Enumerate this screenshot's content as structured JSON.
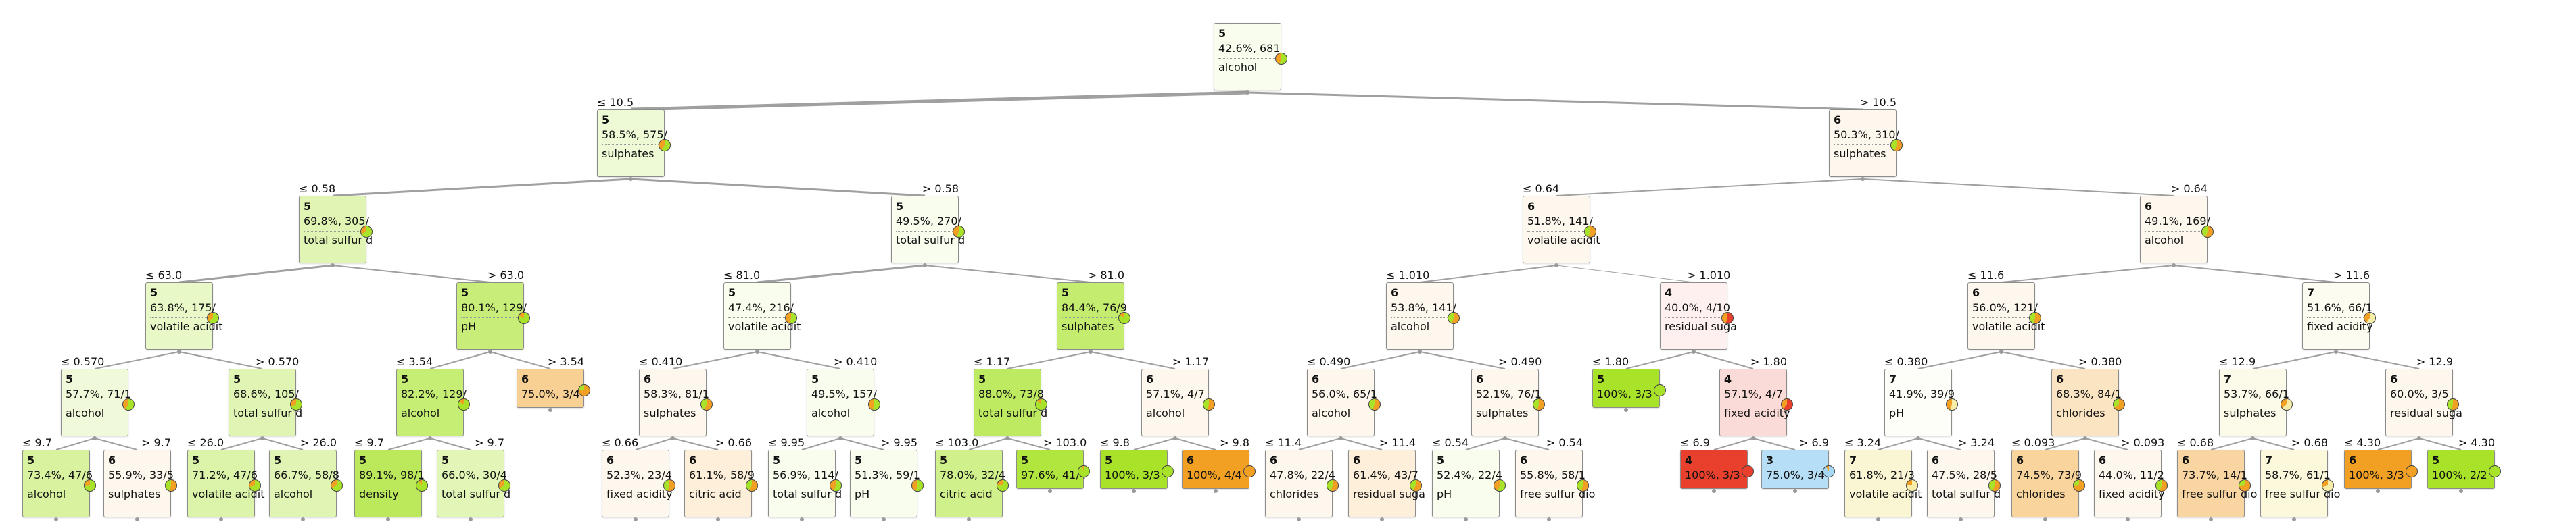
{
  "colors": {
    "class_3": "#a6d8f5",
    "class_4": "#e8402c",
    "class_5": "#a8e32a",
    "class_6": "#f2a024",
    "class_7": "#f5eda8",
    "edge": "#a0a0a0"
  },
  "nodes": [
    {
      "id": "n0",
      "cls": "5",
      "pct": "42.6%, 681",
      "split": "alcohol",
      "tint": "class_5",
      "strength": 0
    },
    {
      "id": "n1",
      "cls": "5",
      "pct": "58.5%, 575/",
      "split": "sulphates",
      "tint": "class_5",
      "strength": 0.12,
      "edge": "≤ 10.5"
    },
    {
      "id": "n2",
      "cls": "6",
      "pct": "50.3%, 310/",
      "split": "sulphates",
      "tint": "class_6",
      "strength": 0,
      "edge": "> 10.5"
    },
    {
      "id": "n3",
      "cls": "5",
      "pct": "69.8%, 305/",
      "split": "total sulfur d",
      "tint": "class_5",
      "strength": 0.3,
      "edge": "≤ 0.58"
    },
    {
      "id": "n4",
      "cls": "5",
      "pct": "49.5%, 270/",
      "split": "total sulfur d",
      "tint": "class_5",
      "strength": 0,
      "edge": "> 0.58"
    },
    {
      "id": "n5",
      "cls": "6",
      "pct": "51.8%, 141/",
      "split": "volatile acidit",
      "tint": "class_6",
      "strength": 0,
      "edge": "≤ 0.64"
    },
    {
      "id": "n6",
      "cls": "6",
      "pct": "49.1%, 169/",
      "split": "alcohol",
      "tint": "class_6",
      "strength": 0,
      "edge": "> 0.64"
    },
    {
      "id": "n7",
      "cls": "5",
      "pct": "63.8%, 175/",
      "split": "volatile acidit",
      "tint": "class_5",
      "strength": 0.2,
      "edge": "≤ 63.0"
    },
    {
      "id": "n8",
      "cls": "5",
      "pct": "80.1%, 129/",
      "split": "pH",
      "tint": "class_5",
      "strength": 0.6,
      "edge": "> 63.0"
    },
    {
      "id": "n9",
      "cls": "5",
      "pct": "47.4%, 216/",
      "split": "volatile acidit",
      "tint": "class_5",
      "strength": 0,
      "edge": "≤ 81.0"
    },
    {
      "id": "n10",
      "cls": "5",
      "pct": "84.4%, 76/9",
      "split": "sulphates",
      "tint": "class_5",
      "strength": 0.65,
      "edge": "> 81.0"
    },
    {
      "id": "n11",
      "cls": "6",
      "pct": "53.8%, 141/",
      "split": "alcohol",
      "tint": "class_6",
      "strength": 0,
      "edge": "≤ 1.010"
    },
    {
      "id": "n12",
      "cls": "4",
      "pct": "40.0%, 4/10",
      "split": "residual suga",
      "tint": "class_4",
      "strength": 0,
      "edge": "> 1.010"
    },
    {
      "id": "n13",
      "cls": "6",
      "pct": "56.0%, 121/",
      "split": "volatile acidit",
      "tint": "class_6",
      "strength": 0,
      "edge": "≤ 11.6"
    },
    {
      "id": "n14",
      "cls": "7",
      "pct": "51.6%, 66/1",
      "split": "fixed acidity",
      "tint": "class_7",
      "strength": 0.1,
      "edge": "> 11.6"
    },
    {
      "id": "n15",
      "cls": "5",
      "pct": "57.7%, 71/1",
      "split": "alcohol",
      "tint": "class_5",
      "strength": 0.1,
      "edge": "≤ 0.570"
    },
    {
      "id": "n16",
      "cls": "5",
      "pct": "68.6%, 105/",
      "split": "total sulfur d",
      "tint": "class_5",
      "strength": 0.3,
      "edge": "> 0.570"
    },
    {
      "id": "n17",
      "cls": "5",
      "pct": "82.2%, 129/",
      "split": "alcohol",
      "tint": "class_5",
      "strength": 0.62,
      "edge": "≤ 3.54"
    },
    {
      "id": "n18",
      "cls": "6",
      "pct": "75.0%, 3/4",
      "split": "",
      "tint": "class_6",
      "strength": 0.45,
      "edge": "> 3.54",
      "leaf": true
    },
    {
      "id": "n19",
      "cls": "6",
      "pct": "58.3%, 81/1",
      "split": "sulphates",
      "tint": "class_6",
      "strength": 0,
      "edge": "≤ 0.410"
    },
    {
      "id": "n20",
      "cls": "5",
      "pct": "49.5%, 157/",
      "split": "alcohol",
      "tint": "class_5",
      "strength": 0,
      "edge": "> 0.410"
    },
    {
      "id": "n21",
      "cls": "5",
      "pct": "88.0%, 73/8",
      "split": "total sulfur d",
      "tint": "class_5",
      "strength": 0.72,
      "edge": "≤ 1.17"
    },
    {
      "id": "n22",
      "cls": "6",
      "pct": "57.1%, 4/7",
      "split": "alcohol",
      "tint": "class_6",
      "strength": 0,
      "edge": "> 1.17"
    },
    {
      "id": "n23",
      "cls": "6",
      "pct": "56.0%, 65/1",
      "split": "alcohol",
      "tint": "class_6",
      "strength": 0,
      "edge": "≤ 0.490"
    },
    {
      "id": "n24",
      "cls": "6",
      "pct": "52.1%, 76/1",
      "split": "sulphates",
      "tint": "class_6",
      "strength": 0,
      "edge": "> 0.490"
    },
    {
      "id": "n25",
      "cls": "5",
      "pct": "100%, 3/3",
      "split": "",
      "tint": "class_5",
      "strength": 1,
      "edge": "≤ 1.80",
      "leaf": true
    },
    {
      "id": "n26",
      "cls": "4",
      "pct": "57.1%, 4/7",
      "split": "fixed acidity",
      "tint": "class_4",
      "strength": 0.12,
      "edge": "> 1.80"
    },
    {
      "id": "n27",
      "cls": "7",
      "pct": "41.9%, 39/9",
      "split": "pH",
      "tint": "class_7",
      "strength": 0,
      "edge": "≤ 0.380"
    },
    {
      "id": "n28",
      "cls": "6",
      "pct": "68.3%, 84/1",
      "split": "chlorides",
      "tint": "class_6",
      "strength": 0.22,
      "edge": "> 0.380"
    },
    {
      "id": "n29",
      "cls": "7",
      "pct": "53.7%, 66/1",
      "split": "sulphates",
      "tint": "class_7",
      "strength": 0.2,
      "edge": "≤ 12.9"
    },
    {
      "id": "n30",
      "cls": "6",
      "pct": "60.0%, 3/5",
      "split": "residual suga",
      "tint": "class_6",
      "strength": 0,
      "edge": "> 12.9"
    },
    {
      "id": "n31",
      "cls": "5",
      "pct": "73.4%, 47/6",
      "split": "alcohol",
      "tint": "class_5",
      "strength": 0.4,
      "edge": "≤ 9.7"
    },
    {
      "id": "n32",
      "cls": "6",
      "pct": "55.9%, 33/5",
      "split": "sulphates",
      "tint": "class_6",
      "strength": 0,
      "edge": "> 9.7"
    },
    {
      "id": "n33",
      "cls": "5",
      "pct": "71.2%, 47/6",
      "split": "volatile acidit",
      "tint": "class_5",
      "strength": 0.35,
      "edge": "≤ 26.0"
    },
    {
      "id": "n34",
      "cls": "5",
      "pct": "66.7%, 58/8",
      "split": "alcohol",
      "tint": "class_5",
      "strength": 0.3,
      "edge": "> 26.0"
    },
    {
      "id": "n35",
      "cls": "5",
      "pct": "89.1%, 98/1",
      "split": "density",
      "tint": "class_5",
      "strength": 0.75,
      "edge": "≤ 9.7"
    },
    {
      "id": "n36",
      "cls": "5",
      "pct": "66.0%, 30/4",
      "split": "total sulfur d",
      "tint": "class_5",
      "strength": 0.28,
      "edge": "> 9.7"
    },
    {
      "id": "n37",
      "cls": "6",
      "pct": "52.3%, 23/4",
      "split": "fixed acidity",
      "tint": "class_6",
      "strength": 0,
      "edge": "≤ 0.66"
    },
    {
      "id": "n38",
      "cls": "6",
      "pct": "61.1%, 58/9",
      "split": "citric acid",
      "tint": "class_6",
      "strength": 0.1,
      "edge": "> 0.66"
    },
    {
      "id": "n39",
      "cls": "5",
      "pct": "56.9%, 114/",
      "split": "total sulfur d",
      "tint": "class_5",
      "strength": 0,
      "edge": "≤ 9.95"
    },
    {
      "id": "n40",
      "cls": "5",
      "pct": "51.3%, 59/1",
      "split": "pH",
      "tint": "class_5",
      "strength": 0,
      "edge": "> 9.95"
    },
    {
      "id": "n41",
      "cls": "5",
      "pct": "78.0%, 32/4",
      "split": "citric acid",
      "tint": "class_5",
      "strength": 0.5,
      "edge": "≤ 103.0"
    },
    {
      "id": "n42",
      "cls": "5",
      "pct": "97.6%, 41/4",
      "split": "",
      "tint": "class_5",
      "strength": 0.9,
      "edge": "> 103.0",
      "leaf": true
    },
    {
      "id": "n43",
      "cls": "5",
      "pct": "100%, 3/3",
      "split": "",
      "tint": "class_5",
      "strength": 1,
      "edge": "≤ 9.8",
      "leaf": true
    },
    {
      "id": "n44",
      "cls": "6",
      "pct": "100%, 4/4",
      "split": "",
      "tint": "class_6",
      "strength": 1,
      "edge": "> 9.8",
      "leaf": true
    },
    {
      "id": "n45",
      "cls": "6",
      "pct": "47.8%, 22/4",
      "split": "chlorides",
      "tint": "class_6",
      "strength": 0,
      "edge": "≤ 11.4"
    },
    {
      "id": "n46",
      "cls": "6",
      "pct": "61.4%, 43/7",
      "split": "residual suga",
      "tint": "class_6",
      "strength": 0.1,
      "edge": "> 11.4"
    },
    {
      "id": "n47",
      "cls": "5",
      "pct": "52.4%, 22/4",
      "split": "pH",
      "tint": "class_5",
      "strength": 0,
      "edge": "≤ 0.54"
    },
    {
      "id": "n48",
      "cls": "6",
      "pct": "55.8%, 58/1",
      "split": "free sulfur dio",
      "tint": "class_6",
      "strength": 0,
      "edge": "> 0.54"
    },
    {
      "id": "n49",
      "cls": "4",
      "pct": "100%, 3/3",
      "split": "",
      "tint": "class_4",
      "strength": 1,
      "edge": "≤ 6.9",
      "leaf": true
    },
    {
      "id": "n50",
      "cls": "3",
      "pct": "75.0%, 3/4",
      "split": "",
      "tint": "class_3",
      "strength": 0.8,
      "edge": "> 6.9",
      "leaf": true
    },
    {
      "id": "n51",
      "cls": "7",
      "pct": "61.8%, 21/3",
      "split": "volatile acidit",
      "tint": "class_7",
      "strength": 0.45,
      "edge": "≤ 3.24"
    },
    {
      "id": "n52",
      "cls": "6",
      "pct": "47.5%, 28/5",
      "split": "total sulfur d",
      "tint": "class_6",
      "strength": 0,
      "edge": "> 3.24"
    },
    {
      "id": "n53",
      "cls": "6",
      "pct": "74.5%, 73/9",
      "split": "chlorides",
      "tint": "class_6",
      "strength": 0.4,
      "edge": "≤ 0.093"
    },
    {
      "id": "n54",
      "cls": "6",
      "pct": "44.0%, 11/2",
      "split": "fixed acidity",
      "tint": "class_6",
      "strength": 0,
      "edge": "> 0.093"
    },
    {
      "id": "n55",
      "cls": "6",
      "pct": "73.7%, 14/1",
      "split": "free sulfur dio",
      "tint": "class_6",
      "strength": 0.38,
      "edge": "≤ 0.68"
    },
    {
      "id": "n56",
      "cls": "7",
      "pct": "58.7%, 61/1",
      "split": "free sulfur dio",
      "tint": "class_7",
      "strength": 0.35,
      "edge": "> 0.68"
    },
    {
      "id": "n57",
      "cls": "6",
      "pct": "100%, 3/3",
      "split": "",
      "tint": "class_6",
      "strength": 1,
      "edge": "≤ 4.30",
      "leaf": true
    },
    {
      "id": "n58",
      "cls": "5",
      "pct": "100%, 2/2",
      "split": "",
      "tint": "class_5",
      "strength": 1,
      "edge": "> 4.30",
      "leaf": true
    }
  ]
}
